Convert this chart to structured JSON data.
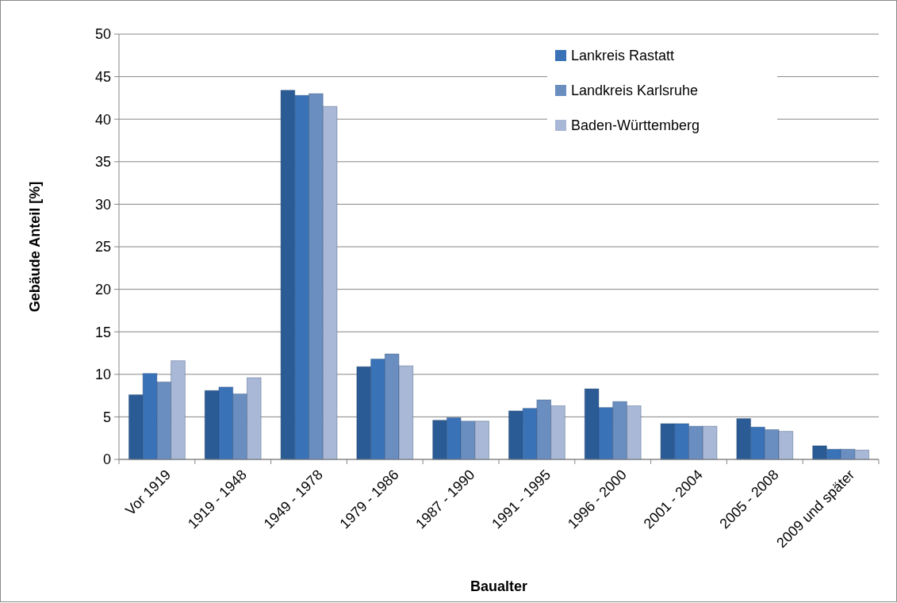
{
  "chart_data": {
    "type": "bar",
    "xlabel": "Baualter",
    "ylabel": "Gebäude Anteil [%]",
    "categories": [
      "Vor 1919",
      "1919 - 1948",
      "1949 - 1978",
      "1979 - 1986",
      "1987 - 1990",
      "1991 - 1995",
      "1996 - 2000",
      "2001 - 2004",
      "2005 - 2008",
      "2009 und später"
    ],
    "series": [
      {
        "color": "#2b5b94",
        "values": [
          7.6,
          8.1,
          43.4,
          10.9,
          4.6,
          5.7,
          8.3,
          4.2,
          4.8,
          1.6
        ]
      },
      {
        "name": "Lankreis Rastatt",
        "color": "#3a72b8",
        "values": [
          10.1,
          8.5,
          42.8,
          11.8,
          4.9,
          6.0,
          6.1,
          4.2,
          3.8,
          1.2
        ]
      },
      {
        "name": "Landkreis Karlsruhe",
        "color": "#6b8ec0",
        "values": [
          9.1,
          7.7,
          43.0,
          12.4,
          4.5,
          7.0,
          6.8,
          3.9,
          3.5,
          1.2
        ]
      },
      {
        "name": "Baden-Württemberg",
        "color": "#a9b8d6",
        "values": [
          11.6,
          9.6,
          41.5,
          11.0,
          4.5,
          6.3,
          6.3,
          3.9,
          3.3,
          1.1
        ]
      }
    ],
    "ylim": [
      0,
      50
    ],
    "yticks": [
      0,
      5,
      10,
      15,
      20,
      25,
      30,
      35,
      40,
      45,
      50
    ],
    "grid": "y",
    "legend": "top right"
  }
}
